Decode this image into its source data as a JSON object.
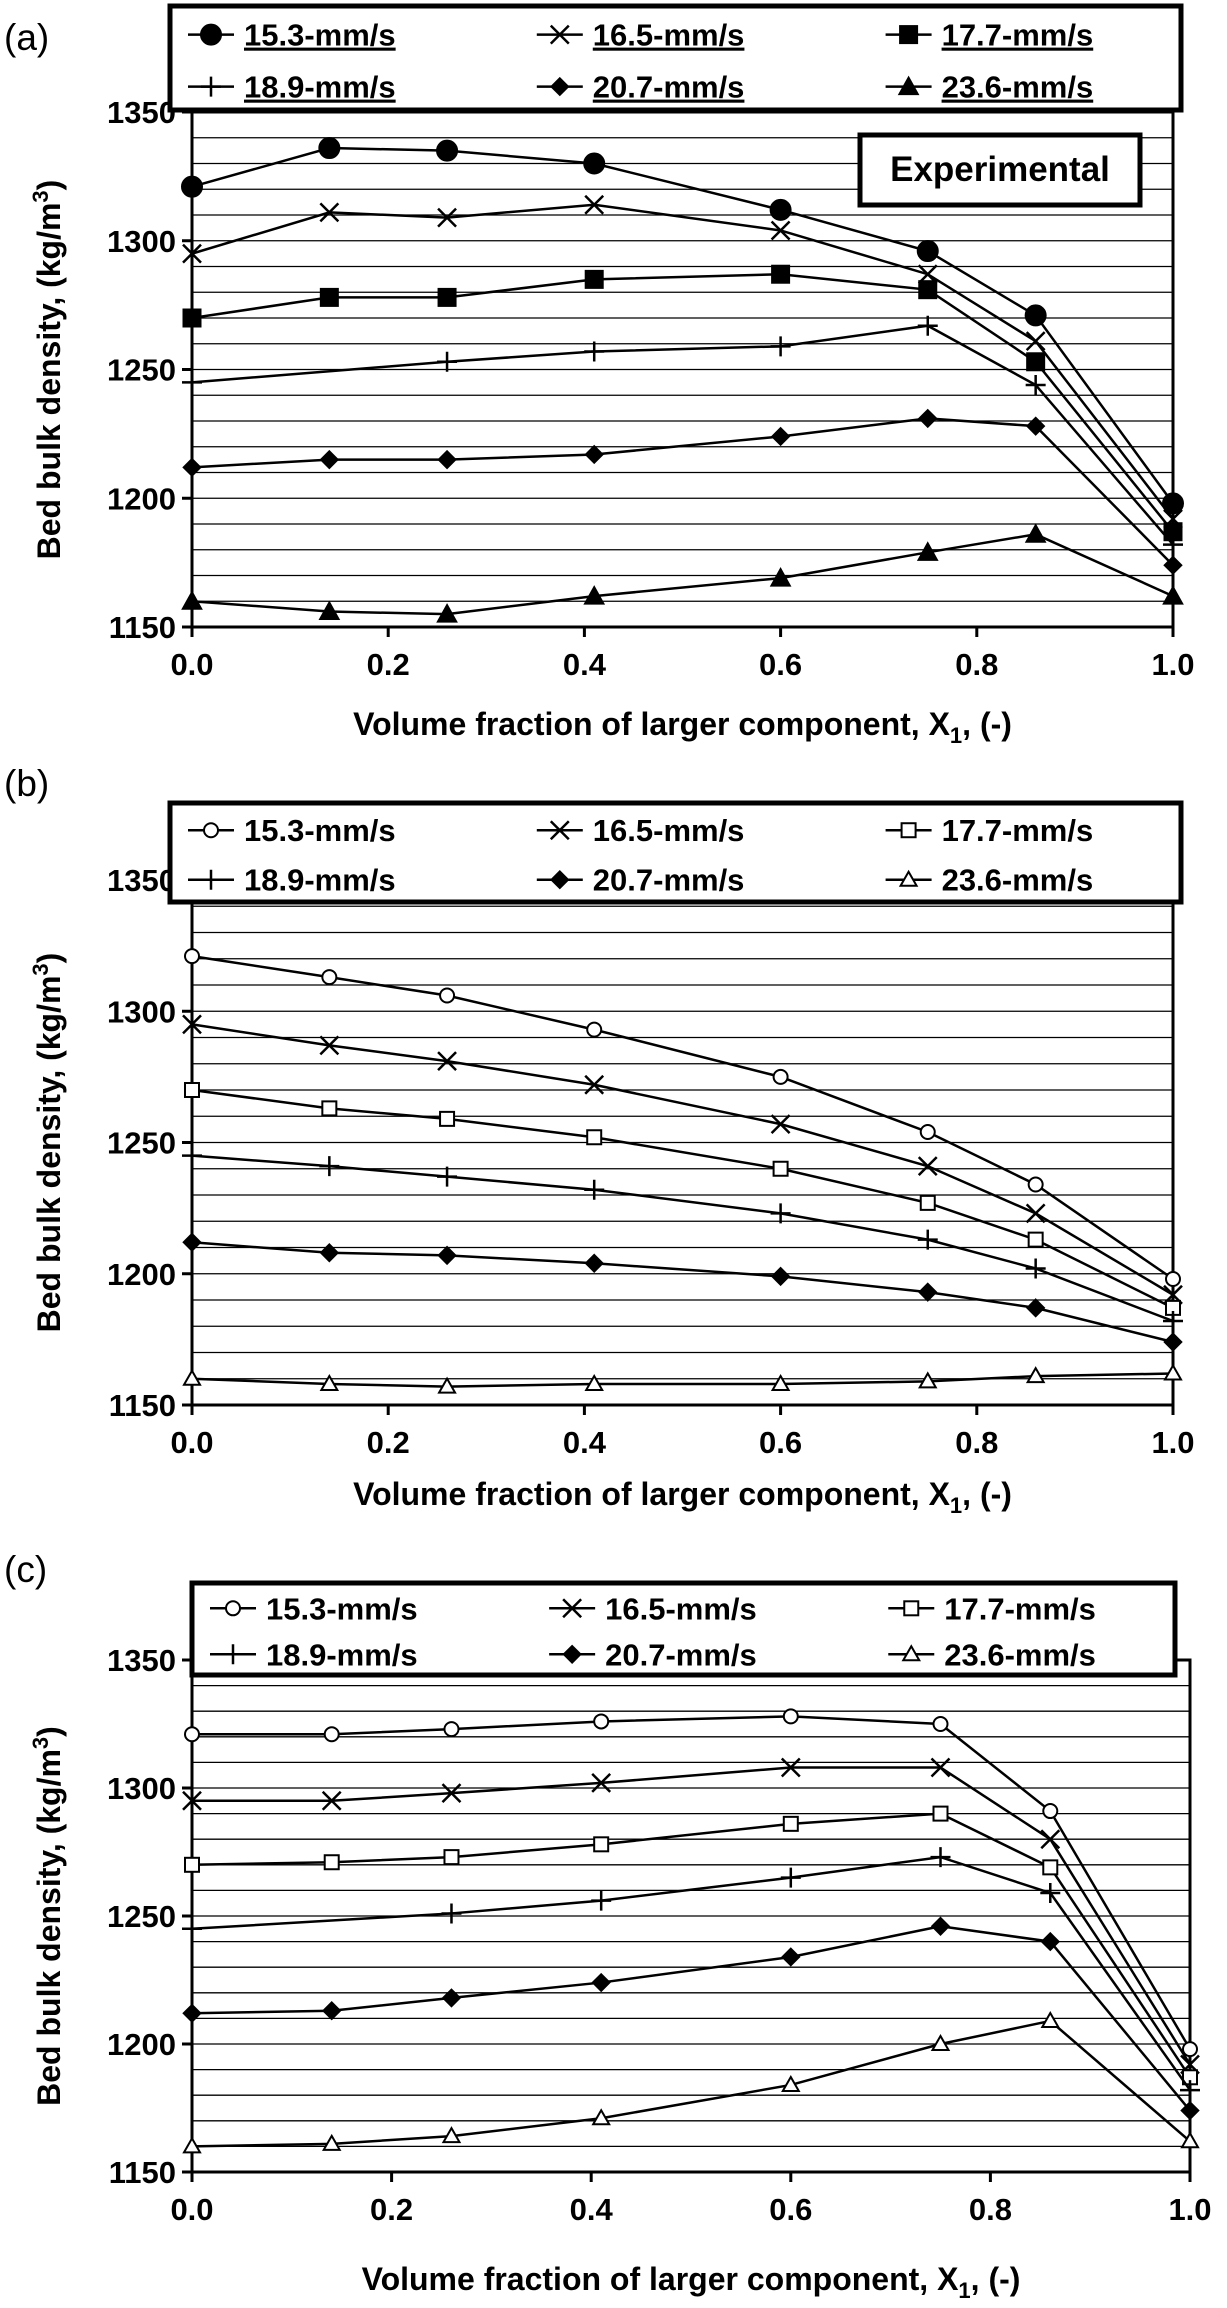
{
  "chart_data": [
    {
      "type": "line",
      "panel_label": "(a)",
      "annotation": "Experimental",
      "xlabel": "Volume fraction of larger component, X",
      "xlabel_sub": "1",
      "xlabel_suffix": ", (-)",
      "ylabel": "Bed bulk density, (kg/m",
      "ylabel_sup": "3",
      "ylabel_suffix": ")",
      "xlim": [
        0,
        1
      ],
      "ylim": [
        1150,
        1350
      ],
      "x_ticks": [
        "0.0",
        "0.2",
        "0.4",
        "0.6",
        "0.8",
        "1.0"
      ],
      "y_ticks": [
        "1150",
        "1200",
        "1250",
        "1300",
        "1350"
      ],
      "grid": "horizontal",
      "legend_position": "top",
      "legend_underlined": true,
      "x": [
        0.0,
        0.14,
        0.26,
        0.41,
        0.6,
        0.75,
        0.86,
        1.0
      ],
      "series": [
        {
          "name": "15.3-mm/s",
          "marker": "circle-filled",
          "values": [
            1321,
            1336,
            1335,
            1330,
            1312,
            1296,
            1271,
            1198
          ]
        },
        {
          "name": "16.5-mm/s",
          "marker": "x",
          "values": [
            1295,
            1311,
            1309,
            1314,
            1304,
            1287,
            1261,
            1192
          ]
        },
        {
          "name": "17.7-mm/s",
          "marker": "square-filled",
          "values": [
            1270,
            1278,
            1278,
            1285,
            1287,
            1281,
            1253,
            1187
          ]
        },
        {
          "name": "18.9-mm/s",
          "marker": "plus",
          "x": [
            0.0,
            0.26,
            0.41,
            0.6,
            0.75,
            0.86,
            1.0
          ],
          "values": [
            1245,
            1253,
            1257,
            1259,
            1267,
            1244,
            1182
          ]
        },
        {
          "name": "20.7-mm/s",
          "marker": "diamond-filled",
          "values": [
            1212,
            1215,
            1215,
            1217,
            1224,
            1231,
            1228,
            1174
          ]
        },
        {
          "name": "23.6-mm/s",
          "marker": "triangle-filled",
          "values": [
            1160,
            1156,
            1155,
            1162,
            1169,
            1179,
            1186,
            1162
          ]
        }
      ]
    },
    {
      "type": "line",
      "panel_label": "(b)",
      "annotation": "",
      "xlabel": "Volume fraction of larger component, X",
      "xlabel_sub": "1",
      "xlabel_suffix": ", (-)",
      "ylabel": "Bed bulk density, (kg/m",
      "ylabel_sup": "3",
      "ylabel_suffix": ")",
      "xlim": [
        0,
        1
      ],
      "ylim": [
        1150,
        1350
      ],
      "x_ticks": [
        "0.0",
        "0.2",
        "0.4",
        "0.6",
        "0.8",
        "1.0"
      ],
      "y_ticks": [
        "1150",
        "1200",
        "1250",
        "1300",
        "1350"
      ],
      "grid": "horizontal",
      "legend_position": "top",
      "legend_underlined": false,
      "x": [
        0.0,
        0.14,
        0.26,
        0.41,
        0.6,
        0.75,
        0.86,
        1.0
      ],
      "series": [
        {
          "name": "15.3-mm/s",
          "marker": "circle-open",
          "values": [
            1321,
            1313,
            1306,
            1293,
            1275,
            1254,
            1234,
            1198
          ]
        },
        {
          "name": "16.5-mm/s",
          "marker": "x",
          "values": [
            1295,
            1287,
            1281,
            1272,
            1257,
            1241,
            1223,
            1192
          ]
        },
        {
          "name": "17.7-mm/s",
          "marker": "square-open",
          "values": [
            1270,
            1263,
            1259,
            1252,
            1240,
            1227,
            1213,
            1187
          ]
        },
        {
          "name": "18.9-mm/s",
          "marker": "plus",
          "values": [
            1245,
            1241,
            1237,
            1232,
            1223,
            1213,
            1202,
            1182
          ]
        },
        {
          "name": "20.7-mm/s",
          "marker": "diamond-filled",
          "values": [
            1212,
            1208,
            1207,
            1204,
            1199,
            1193,
            1187,
            1174
          ]
        },
        {
          "name": "23.6-mm/s",
          "marker": "triangle-open",
          "values": [
            1160,
            1158,
            1157,
            1158,
            1158,
            1159,
            1161,
            1162
          ]
        }
      ]
    },
    {
      "type": "line",
      "panel_label": "(c)",
      "annotation": "",
      "xlabel": "Volume fraction of larger component, X",
      "xlabel_sub": "1",
      "xlabel_suffix": ",  (-)",
      "ylabel": "Bed bulk density, (kg/m",
      "ylabel_sup": "3",
      "ylabel_suffix": ")",
      "xlim": [
        0,
        1
      ],
      "ylim": [
        1150,
        1350
      ],
      "x_ticks": [
        "0.0",
        "0.2",
        "0.4",
        "0.6",
        "0.8",
        "1.0"
      ],
      "y_ticks": [
        "1150",
        "1200",
        "1250",
        "1300",
        "1350"
      ],
      "grid": "horizontal",
      "legend_position": "top",
      "legend_underlined": false,
      "x": [
        0.0,
        0.14,
        0.26,
        0.41,
        0.6,
        0.75,
        0.86,
        1.0
      ],
      "series": [
        {
          "name": "15.3-mm/s",
          "marker": "circle-open",
          "values": [
            1321,
            1321,
            1323,
            1326,
            1328,
            1325,
            1291,
            1198
          ]
        },
        {
          "name": "16.5-mm/s",
          "marker": "x",
          "values": [
            1295,
            1295,
            1298,
            1302,
            1308,
            1308,
            1280,
            1192
          ]
        },
        {
          "name": "17.7-mm/s",
          "marker": "square-open",
          "values": [
            1270,
            1271,
            1273,
            1278,
            1286,
            1290,
            1269,
            1187
          ]
        },
        {
          "name": "18.9-mm/s",
          "marker": "plus",
          "x": [
            0.0,
            0.26,
            0.41,
            0.6,
            0.75,
            0.86,
            1.0
          ],
          "values": [
            1245,
            1251,
            1256,
            1265,
            1273,
            1259,
            1182
          ]
        },
        {
          "name": "20.7-mm/s",
          "marker": "diamond-filled",
          "values": [
            1212,
            1213,
            1218,
            1224,
            1234,
            1246,
            1240,
            1174
          ]
        },
        {
          "name": "23.6-mm/s",
          "marker": "triangle-open",
          "values": [
            1160,
            1161,
            1164,
            1171,
            1184,
            1200,
            1209,
            1162
          ]
        }
      ]
    }
  ]
}
